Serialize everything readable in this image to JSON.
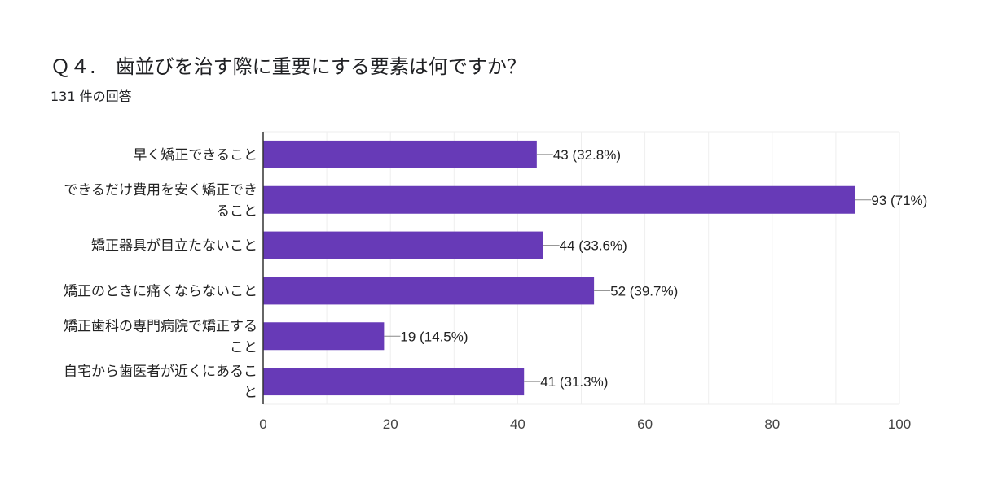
{
  "header": {
    "title": "Ｑ４.　歯並びを治す際に重要にする要素は何ですか？",
    "response_count": "131 件の回答"
  },
  "chart_data": {
    "type": "bar",
    "orientation": "horizontal",
    "categories": [
      [
        "早く矯正できること"
      ],
      [
        "できるだけ費用を安く矯正でき",
        "ること"
      ],
      [
        "矯正器具が目立たないこと"
      ],
      [
        "矯正のときに痛くならないこと"
      ],
      [
        "矯正歯科の専門病院で矯正する",
        "こと"
      ],
      [
        "自宅から歯医者が近くにあるこ",
        "と"
      ]
    ],
    "values": [
      43,
      93,
      44,
      52,
      19,
      41
    ],
    "data_labels": [
      "43 (32.8%)",
      "93 (71%)",
      "44 (33.6%)",
      "52 (39.7%)",
      "19 (14.5%)",
      "41 (31.3%)"
    ],
    "xlim": [
      0,
      100
    ],
    "xticks": [
      0,
      20,
      40,
      60,
      80,
      100
    ],
    "grid": true,
    "bar_color": "#673ab7",
    "grid_color": "#eeeeee",
    "axis_color": "#333333"
  }
}
